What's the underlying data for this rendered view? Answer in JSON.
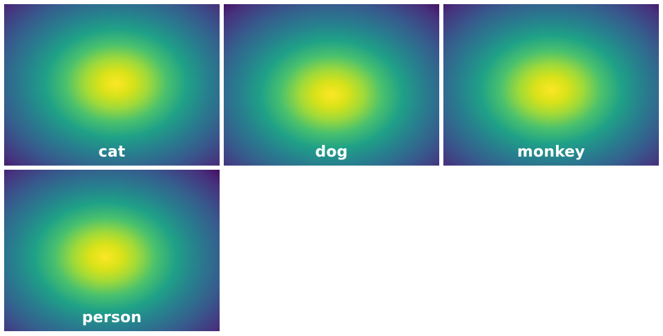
{
  "tiles": [
    {
      "label": "cat"
    },
    {
      "label": "dog"
    },
    {
      "label": "monkey"
    },
    {
      "label": "person"
    }
  ],
  "colors": {
    "peak": "#fde725",
    "mid": "#1fa187",
    "edge": "#440154",
    "label_text": "#ffffff",
    "background": "#ffffff"
  }
}
